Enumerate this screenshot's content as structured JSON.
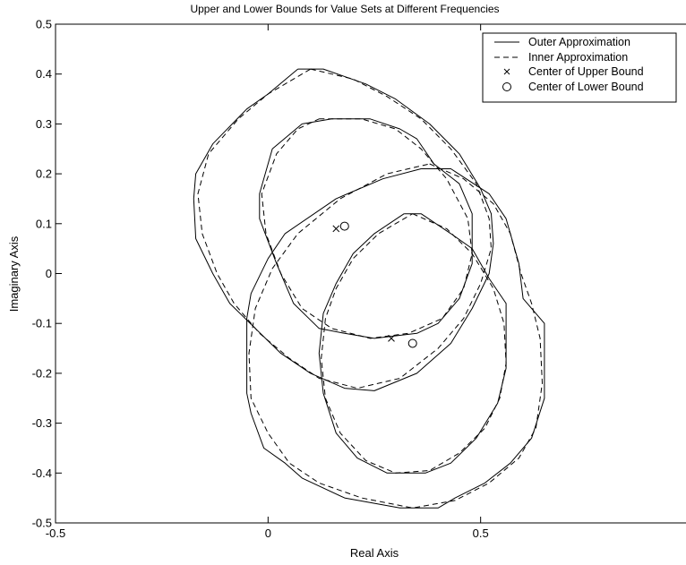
{
  "chart_data": {
    "type": "line",
    "title": "Upper and Lower Bounds for Value Sets at Different Frequencies",
    "xlabel": "Real Axis",
    "ylabel": "Imaginary Axis",
    "xlim": [
      -0.5,
      1.0
    ],
    "ylim": [
      -0.5,
      0.5
    ],
    "xticks": [
      -0.5,
      0,
      0.5
    ],
    "xtick_labels": [
      "-0.5",
      "0",
      "0.5"
    ],
    "yticks": [
      -0.5,
      -0.4,
      -0.3,
      -0.2,
      -0.1,
      0,
      0.1,
      0.2,
      0.3,
      0.4,
      0.5
    ],
    "ytick_labels": [
      "-0.5",
      "-0.4",
      "-0.3",
      "-0.2",
      "-0.1",
      "0",
      "0.1",
      "0.2",
      "0.3",
      "0.4",
      "0.5"
    ],
    "grid": false,
    "legend_position": "top-right",
    "legend": [
      {
        "label": "Outer Approximation",
        "style": "solid"
      },
      {
        "label": "Inner Approximation",
        "style": "dashed"
      },
      {
        "label": "Center of Upper Bound",
        "style": "x-marker"
      },
      {
        "label": "Center of Lower Bound",
        "style": "o-marker"
      }
    ],
    "series": [
      {
        "kind": "outer",
        "style": "solid",
        "points": [
          [
            0.07,
            0.41
          ],
          [
            0.13,
            0.41
          ],
          [
            0.23,
            0.38
          ],
          [
            0.3,
            0.35
          ],
          [
            0.38,
            0.3
          ],
          [
            0.45,
            0.24
          ],
          [
            0.5,
            0.17
          ],
          [
            0.525,
            0.12
          ],
          [
            0.53,
            0.06
          ],
          [
            0.52,
            0.0
          ],
          [
            0.48,
            -0.07
          ],
          [
            0.43,
            -0.14
          ],
          [
            0.35,
            -0.2
          ],
          [
            0.25,
            -0.235
          ],
          [
            0.18,
            -0.23
          ],
          [
            0.1,
            -0.2
          ],
          [
            0.03,
            -0.16
          ],
          [
            -0.03,
            -0.11
          ],
          [
            -0.09,
            -0.06
          ],
          [
            -0.13,
            0.0
          ],
          [
            -0.17,
            0.07
          ],
          [
            -0.175,
            0.15
          ],
          [
            -0.17,
            0.2
          ],
          [
            -0.13,
            0.26
          ],
          [
            -0.05,
            0.33
          ],
          [
            0.0,
            0.36
          ],
          [
            0.07,
            0.41
          ]
        ]
      },
      {
        "kind": "inner",
        "style": "dashed",
        "points": [
          [
            0.1,
            0.41
          ],
          [
            0.2,
            0.39
          ],
          [
            0.28,
            0.355
          ],
          [
            0.36,
            0.31
          ],
          [
            0.43,
            0.25
          ],
          [
            0.49,
            0.18
          ],
          [
            0.52,
            0.11
          ],
          [
            0.525,
            0.05
          ],
          [
            0.5,
            -0.02
          ],
          [
            0.46,
            -0.09
          ],
          [
            0.4,
            -0.15
          ],
          [
            0.31,
            -0.21
          ],
          [
            0.21,
            -0.23
          ],
          [
            0.12,
            -0.21
          ],
          [
            0.05,
            -0.17
          ],
          [
            -0.02,
            -0.12
          ],
          [
            -0.08,
            -0.06
          ],
          [
            -0.12,
            0.0
          ],
          [
            -0.155,
            0.08
          ],
          [
            -0.165,
            0.16
          ],
          [
            -0.14,
            0.24
          ],
          [
            -0.07,
            0.31
          ],
          [
            0.0,
            0.36
          ],
          [
            0.1,
            0.41
          ]
        ]
      },
      {
        "kind": "outer",
        "style": "solid",
        "points": [
          [
            0.08,
            0.3
          ],
          [
            0.15,
            0.31
          ],
          [
            0.24,
            0.31
          ],
          [
            0.31,
            0.29
          ],
          [
            0.35,
            0.27
          ],
          [
            0.39,
            0.22
          ],
          [
            0.42,
            0.2
          ],
          [
            0.45,
            0.18
          ],
          [
            0.48,
            0.12
          ],
          [
            0.48,
            0.02
          ],
          [
            0.45,
            -0.05
          ],
          [
            0.4,
            -0.1
          ],
          [
            0.35,
            -0.12
          ],
          [
            0.25,
            -0.13
          ],
          [
            0.18,
            -0.12
          ],
          [
            0.12,
            -0.11
          ],
          [
            0.06,
            -0.06
          ],
          [
            0.02,
            0.02
          ],
          [
            -0.02,
            0.11
          ],
          [
            -0.02,
            0.16
          ],
          [
            0.01,
            0.25
          ],
          [
            0.08,
            0.3
          ]
        ]
      },
      {
        "kind": "inner",
        "style": "dashed",
        "points": [
          [
            0.12,
            0.31
          ],
          [
            0.22,
            0.31
          ],
          [
            0.3,
            0.29
          ],
          [
            0.36,
            0.25
          ],
          [
            0.42,
            0.19
          ],
          [
            0.47,
            0.11
          ],
          [
            0.48,
            0.04
          ],
          [
            0.46,
            -0.03
          ],
          [
            0.41,
            -0.09
          ],
          [
            0.33,
            -0.12
          ],
          [
            0.24,
            -0.13
          ],
          [
            0.15,
            -0.11
          ],
          [
            0.08,
            -0.07
          ],
          [
            0.03,
            0.0
          ],
          [
            -0.005,
            0.08
          ],
          [
            -0.015,
            0.16
          ],
          [
            0.02,
            0.24
          ],
          [
            0.07,
            0.29
          ],
          [
            0.12,
            0.31
          ]
        ]
      },
      {
        "kind": "outer",
        "style": "solid",
        "points": [
          [
            0.36,
            0.21
          ],
          [
            0.43,
            0.21
          ],
          [
            0.52,
            0.16
          ],
          [
            0.56,
            0.11
          ],
          [
            0.59,
            0.02
          ],
          [
            0.6,
            -0.05
          ],
          [
            0.65,
            -0.1
          ],
          [
            0.65,
            -0.25
          ],
          [
            0.62,
            -0.33
          ],
          [
            0.57,
            -0.38
          ],
          [
            0.51,
            -0.42
          ],
          [
            0.44,
            -0.45
          ],
          [
            0.4,
            -0.47
          ],
          [
            0.31,
            -0.47
          ],
          [
            0.18,
            -0.45
          ],
          [
            0.08,
            -0.41
          ],
          [
            0.04,
            -0.38
          ],
          [
            -0.01,
            -0.35
          ],
          [
            -0.04,
            -0.28
          ],
          [
            -0.05,
            -0.24
          ],
          [
            -0.05,
            -0.09
          ],
          [
            -0.04,
            -0.04
          ],
          [
            0.0,
            0.03
          ],
          [
            0.04,
            0.08
          ],
          [
            0.16,
            0.15
          ],
          [
            0.27,
            0.19
          ],
          [
            0.36,
            0.21
          ]
        ]
      },
      {
        "kind": "inner",
        "style": "dashed",
        "points": [
          [
            0.38,
            0.22
          ],
          [
            0.46,
            0.19
          ],
          [
            0.53,
            0.14
          ],
          [
            0.57,
            0.08
          ],
          [
            0.595,
            0.0
          ],
          [
            0.62,
            -0.06
          ],
          [
            0.64,
            -0.13
          ],
          [
            0.645,
            -0.22
          ],
          [
            0.63,
            -0.31
          ],
          [
            0.59,
            -0.37
          ],
          [
            0.52,
            -0.42
          ],
          [
            0.44,
            -0.455
          ],
          [
            0.34,
            -0.47
          ],
          [
            0.22,
            -0.45
          ],
          [
            0.12,
            -0.42
          ],
          [
            0.05,
            -0.38
          ],
          [
            0.0,
            -0.32
          ],
          [
            -0.04,
            -0.25
          ],
          [
            -0.045,
            -0.16
          ],
          [
            -0.03,
            -0.07
          ],
          [
            0.01,
            0.01
          ],
          [
            0.07,
            0.08
          ],
          [
            0.17,
            0.15
          ],
          [
            0.28,
            0.2
          ],
          [
            0.38,
            0.22
          ]
        ]
      },
      {
        "kind": "outer",
        "style": "solid",
        "points": [
          [
            0.32,
            0.12
          ],
          [
            0.36,
            0.12
          ],
          [
            0.43,
            0.08
          ],
          [
            0.48,
            0.05
          ],
          [
            0.52,
            -0.01
          ],
          [
            0.56,
            -0.06
          ],
          [
            0.56,
            -0.19
          ],
          [
            0.54,
            -0.26
          ],
          [
            0.49,
            -0.33
          ],
          [
            0.43,
            -0.38
          ],
          [
            0.37,
            -0.4
          ],
          [
            0.28,
            -0.4
          ],
          [
            0.21,
            -0.37
          ],
          [
            0.16,
            -0.32
          ],
          [
            0.13,
            -0.24
          ],
          [
            0.12,
            -0.16
          ],
          [
            0.13,
            -0.08
          ],
          [
            0.16,
            -0.02
          ],
          [
            0.2,
            0.04
          ],
          [
            0.25,
            0.08
          ],
          [
            0.32,
            0.12
          ]
        ]
      },
      {
        "kind": "inner",
        "style": "dashed",
        "points": [
          [
            0.34,
            0.12
          ],
          [
            0.42,
            0.09
          ],
          [
            0.48,
            0.04
          ],
          [
            0.53,
            -0.03
          ],
          [
            0.555,
            -0.1
          ],
          [
            0.56,
            -0.18
          ],
          [
            0.545,
            -0.25
          ],
          [
            0.51,
            -0.31
          ],
          [
            0.45,
            -0.36
          ],
          [
            0.38,
            -0.395
          ],
          [
            0.3,
            -0.4
          ],
          [
            0.23,
            -0.375
          ],
          [
            0.17,
            -0.32
          ],
          [
            0.135,
            -0.25
          ],
          [
            0.125,
            -0.17
          ],
          [
            0.135,
            -0.09
          ],
          [
            0.16,
            -0.03
          ],
          [
            0.2,
            0.03
          ],
          [
            0.26,
            0.08
          ],
          [
            0.34,
            0.12
          ]
        ]
      }
    ],
    "centers": [
      {
        "kind": "upper",
        "marker": "x",
        "x": 0.16,
        "y": 0.09
      },
      {
        "kind": "lower",
        "marker": "o",
        "x": 0.18,
        "y": 0.095
      },
      {
        "kind": "upper",
        "marker": "x",
        "x": 0.29,
        "y": -0.13
      },
      {
        "kind": "lower",
        "marker": "o",
        "x": 0.34,
        "y": -0.14
      }
    ]
  }
}
